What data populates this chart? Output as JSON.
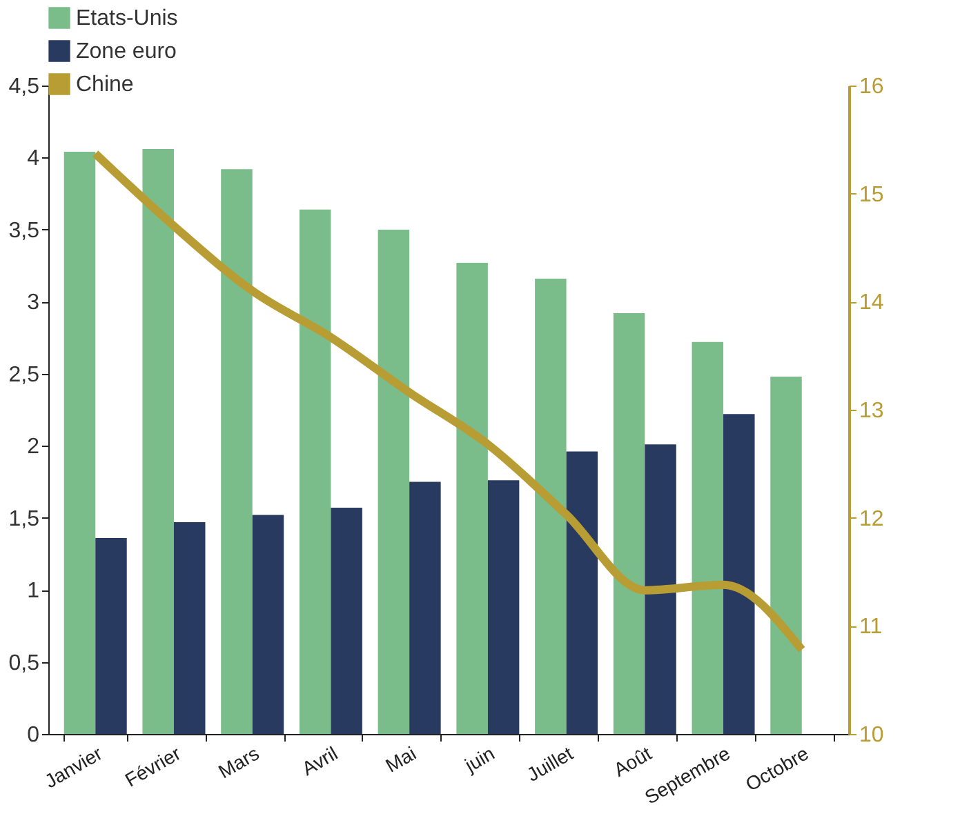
{
  "chart_data": {
    "type": "bar",
    "categories": [
      "Janvier",
      "Février",
      "Mars",
      "Avril",
      "Mai",
      "juin",
      "Juillet",
      "Août",
      "Septembre",
      "Octobre"
    ],
    "series": [
      {
        "name": "Etats-Unis",
        "color": "#7bbd8a",
        "values": [
          4.04,
          4.06,
          3.92,
          3.64,
          3.5,
          3.27,
          3.16,
          2.92,
          2.72,
          2.48
        ]
      },
      {
        "name": "Zone euro",
        "color": "#283a60",
        "values": [
          1.36,
          1.47,
          1.52,
          1.57,
          1.75,
          1.76,
          1.96,
          2.01,
          2.22,
          null
        ]
      },
      {
        "name": "Chine",
        "color": "#b89c34",
        "type": "line",
        "axis": "y2",
        "values": [
          15.37,
          14.7,
          14.1,
          13.67,
          13.16,
          12.68,
          12.03,
          11.33,
          11.38,
          10.78
        ]
      }
    ],
    "ylim": [
      0,
      4.5
    ],
    "yticks": [
      0,
      {
        "value": 0.5,
        "label": "0,5"
      },
      1,
      {
        "value": 1.5,
        "label": "1,5"
      },
      2,
      {
        "value": 2.5,
        "label": "2,5"
      },
      3,
      {
        "value": 3.5,
        "label": "3,5"
      },
      4,
      {
        "value": 4.5,
        "label": "4,5"
      }
    ],
    "y2lim": [
      10,
      16
    ],
    "y2ticks": [
      10,
      11,
      12,
      13,
      14,
      15,
      16
    ],
    "grid": false,
    "legend": "top",
    "line_style": "solid",
    "marker": "none"
  }
}
